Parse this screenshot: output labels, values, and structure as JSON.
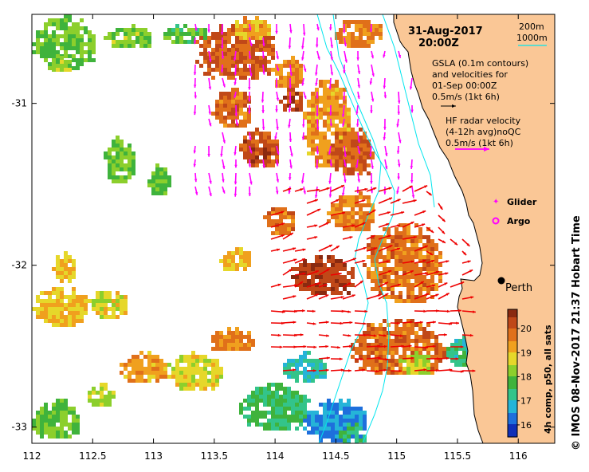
{
  "map": {
    "date": "31-Aug-2017",
    "time": "20:00Z",
    "x_ticks": [
      "112",
      "112.5",
      "113",
      "113.5",
      "114",
      "114.5",
      "115",
      "115.5",
      "116"
    ],
    "y_ticks": [
      "-31",
      "-32",
      "-33"
    ],
    "lon_range": [
      112,
      116.3
    ],
    "lat_range": [
      -33.1,
      -30.45
    ]
  },
  "legend": {
    "isobath_200": "200m",
    "isobath_1000": "1000m",
    "gsla_line1": "GSLA (0.1m contours)",
    "gsla_line2": "and velocities for",
    "gsla_line3": "01-Sep 00:00Z",
    "gsla_scale": "0.5m/s (1kt 6h)",
    "hf_line1": "HF radar velocity",
    "hf_line2": "(4-12h avg)noQC",
    "hf_scale": "0.5m/s (1kt 6h)",
    "glider": "Glider",
    "argo": "Argo",
    "city": "Perth"
  },
  "colorbar": {
    "ticks": [
      "20",
      "19",
      "18",
      "17",
      "16"
    ],
    "label": "4h comp, p50, all sats",
    "range": [
      15.5,
      20.8
    ]
  },
  "footer": {
    "copyright": "© IMOS 08-Nov-2017 21:37 Hobart Time"
  },
  "colors": {
    "land": "#fac796",
    "isobath": "#00e5ee",
    "gsla_vector": "#ff00ff",
    "hf_vector": "#ee0000"
  }
}
